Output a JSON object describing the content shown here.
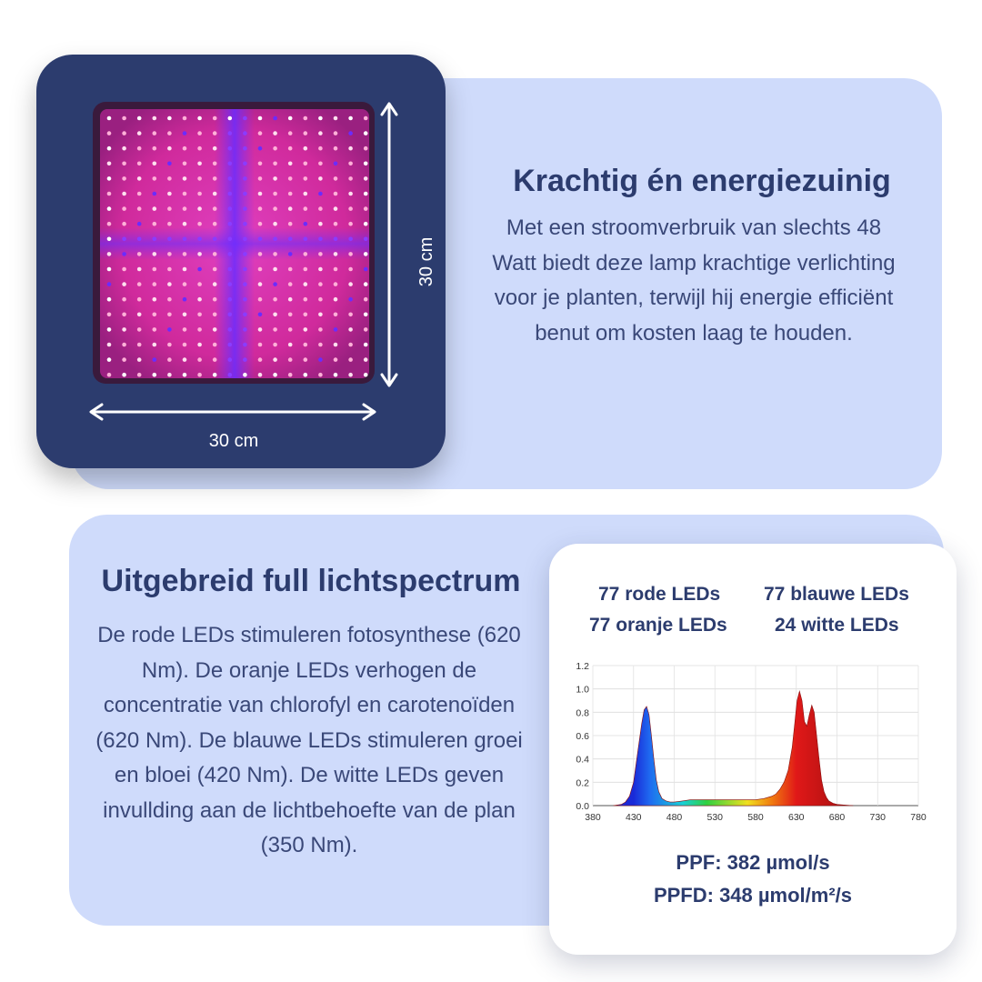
{
  "product": {
    "width_label": "30 cm",
    "height_label": "30 cm"
  },
  "feature_power": {
    "title": "Krachtig én energiezuinig",
    "body": "Met een stroomverbruik van slechts 48 Watt biedt deze lamp krachtige verlichting voor je planten, terwijl hij energie efficiënt benut om kosten laag te houden."
  },
  "feature_spectrum": {
    "title": "Uitgebreid full lichtspectrum",
    "body": "De rode LEDs stimuleren fotosynthese (620 Nm). De oranje LEDs verhogen de concentratie van chlorofyl en carotenoïden (620 Nm). De blauwe LEDs stimuleren groei en bloei (420 Nm). De witte LEDs geven invullding aan de lichtbehoefte van de plan (350 Nm)."
  },
  "spec": {
    "led_counts": {
      "red": "77 rode LEDs",
      "blue": "77 blauwe LEDs",
      "orange": "77 oranje LEDs",
      "white": "24 witte LEDs"
    },
    "ppf": "PPF: 382 µmol/s",
    "ppfd": "PPFD: 348 µmol/m²/s"
  },
  "colors": {
    "navy": "#2c3c6e",
    "panel": "#cfdbfb",
    "led_red": "#ff5a8c",
    "led_blue": "#6a2cff"
  },
  "chart_data": {
    "type": "area",
    "x_ticks": [
      380,
      430,
      480,
      530,
      580,
      630,
      680,
      730,
      780
    ],
    "y_ticks": [
      "0.0",
      "0.2",
      "0.4",
      "0.6",
      "0.8",
      "1.0",
      "1.2"
    ],
    "xlim": [
      380,
      780
    ],
    "ylim": [
      0,
      1.2
    ],
    "grid": true,
    "series": [
      {
        "x": [
          405,
          415,
          420,
          425,
          430,
          435,
          440,
          443,
          446,
          449,
          452,
          455,
          458,
          461,
          465,
          470,
          475,
          480,
          490,
          500,
          510,
          520,
          530,
          540,
          550,
          560,
          570,
          580,
          590,
          600,
          605,
          610,
          615,
          620,
          625,
          628,
          631,
          634,
          637,
          640,
          643,
          646,
          649,
          652,
          655,
          658,
          661,
          664,
          667,
          670,
          675,
          680,
          690,
          700
        ],
        "y": [
          0,
          0.01,
          0.03,
          0.08,
          0.2,
          0.45,
          0.7,
          0.82,
          0.85,
          0.78,
          0.6,
          0.4,
          0.22,
          0.12,
          0.06,
          0.04,
          0.03,
          0.03,
          0.04,
          0.05,
          0.05,
          0.05,
          0.05,
          0.05,
          0.05,
          0.05,
          0.05,
          0.05,
          0.06,
          0.08,
          0.1,
          0.14,
          0.2,
          0.3,
          0.5,
          0.7,
          0.9,
          0.98,
          0.9,
          0.72,
          0.68,
          0.78,
          0.86,
          0.8,
          0.6,
          0.4,
          0.22,
          0.12,
          0.07,
          0.04,
          0.02,
          0.01,
          0.005,
          0
        ]
      }
    ]
  }
}
